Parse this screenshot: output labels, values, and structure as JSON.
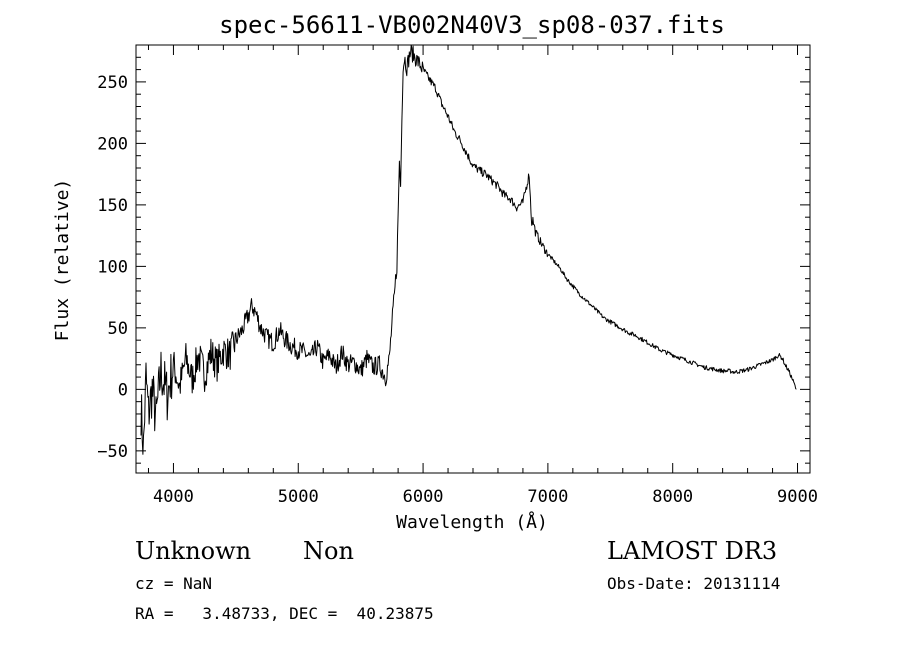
{
  "chart_data": {
    "type": "line",
    "title": "spec-56611-VB002N40V3_sp08-037.fits",
    "xlabel": "Wavelength (Å)",
    "ylabel": "Flux (relative)",
    "xlim": [
      3700,
      9100
    ],
    "ylim": [
      -68,
      280
    ],
    "x_ticks": [
      4000,
      5000,
      6000,
      7000,
      8000,
      9000
    ],
    "x_tick_labels": [
      "4000",
      "5000",
      "6000",
      "7000",
      "8000",
      "9000"
    ],
    "y_ticks": [
      -50,
      0,
      50,
      100,
      150,
      200,
      250
    ],
    "y_tick_labels": [
      "−50",
      "0",
      "50",
      "100",
      "150",
      "200",
      "250"
    ],
    "x_minor_step": 200,
    "y_minor_step": 10,
    "grid": false,
    "series": [
      {
        "name": "flux",
        "x": [
          3740,
          3760,
          3780,
          3800,
          3830,
          3860,
          3900,
          3950,
          4000,
          4050,
          4100,
          4150,
          4200,
          4250,
          4300,
          4350,
          4400,
          4450,
          4500,
          4550,
          4600,
          4630,
          4660,
          4700,
          4750,
          4800,
          4850,
          4900,
          4950,
          5000,
          5050,
          5100,
          5150,
          5200,
          5250,
          5300,
          5350,
          5400,
          5450,
          5500,
          5550,
          5600,
          5650,
          5700,
          5730,
          5750,
          5770,
          5790,
          5800,
          5810,
          5820,
          5830,
          5840,
          5850,
          5870,
          5900,
          5950,
          6000,
          6050,
          6100,
          6150,
          6200,
          6250,
          6300,
          6350,
          6400,
          6450,
          6500,
          6550,
          6600,
          6650,
          6700,
          6750,
          6800,
          6850,
          6870,
          6880,
          6900,
          6950,
          7000,
          7050,
          7100,
          7150,
          7200,
          7250,
          7300,
          7350,
          7400,
          7450,
          7500,
          7550,
          7600,
          7650,
          7700,
          7750,
          7800,
          7850,
          7900,
          7950,
          8000,
          8050,
          8100,
          8150,
          8200,
          8250,
          8300,
          8350,
          8400,
          8450,
          8500,
          8550,
          8600,
          8650,
          8700,
          8750,
          8800,
          8850,
          8880,
          8900,
          8930,
          8960,
          8990
        ],
        "y": [
          -15,
          -48,
          10,
          -20,
          0,
          -25,
          15,
          -5,
          20,
          2,
          25,
          8,
          28,
          12,
          30,
          20,
          32,
          28,
          40,
          48,
          60,
          68,
          62,
          50,
          42,
          38,
          48,
          40,
          35,
          32,
          30,
          25,
          35,
          22,
          28,
          18,
          30,
          20,
          22,
          15,
          25,
          18,
          20,
          10,
          25,
          52,
          75,
          102,
          140,
          185,
          165,
          225,
          260,
          270,
          262,
          275,
          268,
          260,
          252,
          245,
          232,
          222,
          210,
          202,
          192,
          182,
          178,
          175,
          170,
          165,
          158,
          155,
          148,
          152,
          175,
          135,
          138,
          128,
          118,
          110,
          104,
          98,
          90,
          84,
          78,
          73,
          68,
          63,
          58,
          55,
          52,
          49,
          46,
          44,
          41,
          38,
          35,
          32,
          30,
          28,
          26,
          24,
          22,
          20,
          18,
          17,
          16,
          15,
          15,
          14,
          15,
          16,
          18,
          20,
          22,
          24,
          28,
          25,
          20,
          15,
          8,
          0
        ]
      }
    ]
  },
  "info": {
    "class_label": "Unknown",
    "subclass_label": "Non",
    "survey": "LAMOST DR3",
    "cz": "cz = NaN",
    "obs_date": "Obs-Date: 20131114",
    "coords": "RA =   3.48733, DEC =  40.23875"
  }
}
